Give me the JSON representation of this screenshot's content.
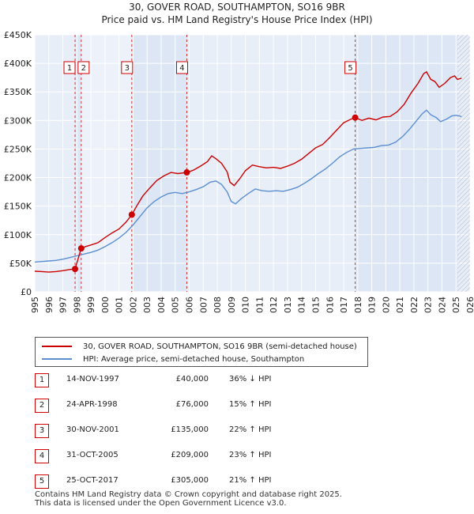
{
  "chart_data": {
    "type": "line",
    "title": "30, GOVER ROAD, SOUTHAMPTON, SO16 9BR",
    "subtitle": "Price paid vs. HM Land Registry's House Price Index (HPI)",
    "xlim": [
      1995,
      2026
    ],
    "ylim": [
      0,
      450000
    ],
    "x_ticks": [
      1995,
      1996,
      1997,
      1998,
      1999,
      2000,
      2001,
      2002,
      2003,
      2004,
      2005,
      2006,
      2007,
      2008,
      2009,
      2010,
      2011,
      2012,
      2013,
      2014,
      2015,
      2016,
      2017,
      2018,
      2019,
      2020,
      2021,
      2022,
      2023,
      2024,
      2025,
      2026
    ],
    "y_ticks": [
      {
        "value": 0,
        "label": "£0"
      },
      {
        "value": 50000,
        "label": "£50K"
      },
      {
        "value": 100000,
        "label": "£100K"
      },
      {
        "value": 150000,
        "label": "£150K"
      },
      {
        "value": 200000,
        "label": "£200K"
      },
      {
        "value": 250000,
        "label": "£250K"
      },
      {
        "value": 300000,
        "label": "£300K"
      },
      {
        "value": 350000,
        "label": "£350K"
      },
      {
        "value": 400000,
        "label": "£400K"
      },
      {
        "value": 450000,
        "label": "£450K"
      }
    ],
    "future_hatch_from": 2025.1,
    "colors": {
      "price": "#cc0000",
      "hpi": "#5b8fd0",
      "band": "#dce6f5",
      "grid": "#ffffff",
      "bg": "#e8eef8"
    },
    "series": [
      {
        "name": "30, GOVER ROAD, SOUTHAMPTON, SO16 9BR (semi-detached house)",
        "color": "#cc0000",
        "points": [
          [
            1995.0,
            36000
          ],
          [
            1995.5,
            35500
          ],
          [
            1996.0,
            34500
          ],
          [
            1996.5,
            35500
          ],
          [
            1997.0,
            37000
          ],
          [
            1997.5,
            39000
          ],
          [
            1997.87,
            40000
          ],
          [
            1998.31,
            76000
          ],
          [
            1998.6,
            79000
          ],
          [
            1999.0,
            82000
          ],
          [
            1999.5,
            86000
          ],
          [
            2000.0,
            95000
          ],
          [
            2000.5,
            103000
          ],
          [
            2001.0,
            110000
          ],
          [
            2001.5,
            122000
          ],
          [
            2001.91,
            135000
          ],
          [
            2002.3,
            152000
          ],
          [
            2002.7,
            168000
          ],
          [
            2003.2,
            182000
          ],
          [
            2003.7,
            195000
          ],
          [
            2004.2,
            203000
          ],
          [
            2004.7,
            209000
          ],
          [
            2005.2,
            207000
          ],
          [
            2005.83,
            209000
          ],
          [
            2006.3,
            213000
          ],
          [
            2006.8,
            220000
          ],
          [
            2007.3,
            228000
          ],
          [
            2007.6,
            238000
          ],
          [
            2007.9,
            233000
          ],
          [
            2008.3,
            225000
          ],
          [
            2008.7,
            210000
          ],
          [
            2008.9,
            192000
          ],
          [
            2009.2,
            186000
          ],
          [
            2009.6,
            198000
          ],
          [
            2010.0,
            212000
          ],
          [
            2010.5,
            222000
          ],
          [
            2011.0,
            219000
          ],
          [
            2011.5,
            217000
          ],
          [
            2012.0,
            218000
          ],
          [
            2012.5,
            216000
          ],
          [
            2013.0,
            220000
          ],
          [
            2013.5,
            225000
          ],
          [
            2014.0,
            232000
          ],
          [
            2014.5,
            242000
          ],
          [
            2015.0,
            252000
          ],
          [
            2015.5,
            258000
          ],
          [
            2016.0,
            270000
          ],
          [
            2016.5,
            283000
          ],
          [
            2017.0,
            296000
          ],
          [
            2017.5,
            302000
          ],
          [
            2017.82,
            305000
          ],
          [
            2018.3,
            300000
          ],
          [
            2018.8,
            304000
          ],
          [
            2019.3,
            301000
          ],
          [
            2019.8,
            306000
          ],
          [
            2020.3,
            307000
          ],
          [
            2020.8,
            315000
          ],
          [
            2021.3,
            328000
          ],
          [
            2021.8,
            348000
          ],
          [
            2022.3,
            365000
          ],
          [
            2022.7,
            382000
          ],
          [
            2022.9,
            385000
          ],
          [
            2023.2,
            372000
          ],
          [
            2023.5,
            368000
          ],
          [
            2023.8,
            358000
          ],
          [
            2024.2,
            365000
          ],
          [
            2024.6,
            375000
          ],
          [
            2024.9,
            378000
          ],
          [
            2025.1,
            372000
          ],
          [
            2025.4,
            374000
          ]
        ]
      },
      {
        "name": "HPI: Average price, semi-detached house, Southampton",
        "color": "#5b8fd0",
        "points": [
          [
            1995.0,
            52000
          ],
          [
            1995.5,
            53000
          ],
          [
            1996.0,
            54000
          ],
          [
            1996.5,
            55000
          ],
          [
            1997.0,
            57000
          ],
          [
            1997.5,
            60000
          ],
          [
            1998.0,
            63000
          ],
          [
            1998.5,
            66000
          ],
          [
            1999.0,
            69000
          ],
          [
            1999.5,
            73000
          ],
          [
            2000.0,
            79000
          ],
          [
            2000.5,
            86000
          ],
          [
            2001.0,
            94000
          ],
          [
            2001.5,
            104000
          ],
          [
            2002.0,
            117000
          ],
          [
            2002.5,
            132000
          ],
          [
            2003.0,
            147000
          ],
          [
            2003.5,
            158000
          ],
          [
            2004.0,
            166000
          ],
          [
            2004.5,
            172000
          ],
          [
            2005.0,
            174000
          ],
          [
            2005.5,
            172000
          ],
          [
            2006.0,
            175000
          ],
          [
            2006.5,
            179000
          ],
          [
            2007.0,
            184000
          ],
          [
            2007.5,
            192000
          ],
          [
            2007.9,
            194000
          ],
          [
            2008.3,
            188000
          ],
          [
            2008.7,
            175000
          ],
          [
            2009.0,
            158000
          ],
          [
            2009.3,
            154000
          ],
          [
            2009.7,
            163000
          ],
          [
            2010.2,
            172000
          ],
          [
            2010.7,
            180000
          ],
          [
            2011.2,
            177000
          ],
          [
            2011.7,
            176000
          ],
          [
            2012.2,
            177000
          ],
          [
            2012.7,
            176000
          ],
          [
            2013.2,
            179000
          ],
          [
            2013.7,
            183000
          ],
          [
            2014.2,
            190000
          ],
          [
            2014.7,
            198000
          ],
          [
            2015.2,
            207000
          ],
          [
            2015.7,
            215000
          ],
          [
            2016.2,
            225000
          ],
          [
            2016.7,
            236000
          ],
          [
            2017.2,
            244000
          ],
          [
            2017.7,
            250000
          ],
          [
            2018.2,
            251000
          ],
          [
            2018.7,
            252000
          ],
          [
            2019.2,
            253000
          ],
          [
            2019.7,
            256000
          ],
          [
            2020.2,
            257000
          ],
          [
            2020.7,
            262000
          ],
          [
            2021.2,
            272000
          ],
          [
            2021.7,
            285000
          ],
          [
            2022.2,
            300000
          ],
          [
            2022.6,
            312000
          ],
          [
            2022.9,
            318000
          ],
          [
            2023.2,
            310000
          ],
          [
            2023.6,
            305000
          ],
          [
            2023.9,
            298000
          ],
          [
            2024.3,
            302000
          ],
          [
            2024.7,
            308000
          ],
          [
            2025.0,
            309000
          ],
          [
            2025.4,
            307000
          ]
        ]
      }
    ],
    "sale_markers": [
      {
        "id": "1",
        "x": 1997.87,
        "value": 40000
      },
      {
        "id": "2",
        "x": 1998.31,
        "value": 76000
      },
      {
        "id": "3",
        "x": 2001.91,
        "value": 135000
      },
      {
        "id": "4",
        "x": 2005.83,
        "value": 209000
      },
      {
        "id": "5",
        "x": 2017.82,
        "value": 305000
      }
    ]
  },
  "legend": {
    "items": [
      {
        "label": "30, GOVER ROAD, SOUTHAMPTON, SO16 9BR (semi-detached house)",
        "color": "#cc0000"
      },
      {
        "label": "HPI: Average price, semi-detached house, Southampton",
        "color": "#5b8fd0"
      }
    ]
  },
  "sales": [
    {
      "num": "1",
      "date": "14-NOV-1997",
      "price": "£40,000",
      "hpi": "36% ↓ HPI"
    },
    {
      "num": "2",
      "date": "24-APR-1998",
      "price": "£76,000",
      "hpi": "15% ↑ HPI"
    },
    {
      "num": "3",
      "date": "30-NOV-2001",
      "price": "£135,000",
      "hpi": "22% ↑ HPI"
    },
    {
      "num": "4",
      "date": "31-OCT-2005",
      "price": "£209,000",
      "hpi": "23% ↑ HPI"
    },
    {
      "num": "5",
      "date": "25-OCT-2017",
      "price": "£305,000",
      "hpi": "21% ↑ HPI"
    }
  ],
  "footer": {
    "line1": "Contains HM Land Registry data © Crown copyright and database right 2025.",
    "line2": "This data is licensed under the Open Government Licence v3.0."
  }
}
